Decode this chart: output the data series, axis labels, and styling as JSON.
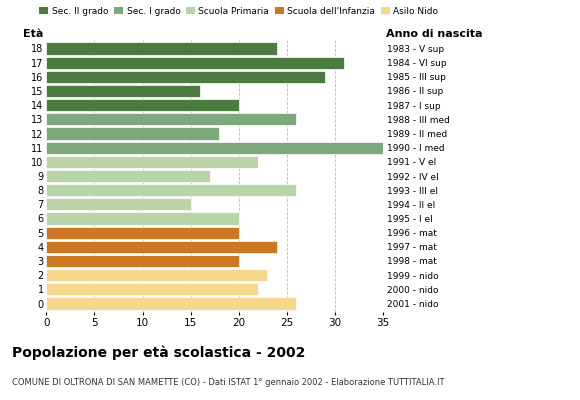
{
  "ages": [
    18,
    17,
    16,
    15,
    14,
    13,
    12,
    11,
    10,
    9,
    8,
    7,
    6,
    5,
    4,
    3,
    2,
    1,
    0
  ],
  "values": [
    24,
    31,
    29,
    16,
    20,
    26,
    18,
    35,
    22,
    17,
    26,
    15,
    20,
    20,
    24,
    20,
    23,
    22,
    26
  ],
  "right_labels": [
    "1983 - V sup",
    "1984 - VI sup",
    "1985 - III sup",
    "1986 - II sup",
    "1987 - I sup",
    "1988 - III med",
    "1989 - II med",
    "1990 - I med",
    "1991 - V el",
    "1992 - IV el",
    "1993 - III el",
    "1994 - II el",
    "1995 - I el",
    "1996 - mat",
    "1997 - mat",
    "1998 - mat",
    "1999 - nido",
    "2000 - nido",
    "2001 - nido"
  ],
  "colors": [
    "#4a7c3f",
    "#4a7c3f",
    "#4a7c3f",
    "#4a7c3f",
    "#4a7c3f",
    "#7da87b",
    "#7da87b",
    "#7da87b",
    "#b8d4a8",
    "#b8d4a8",
    "#b8d4a8",
    "#b8d4a8",
    "#b8d4a8",
    "#cc7722",
    "#cc7722",
    "#cc7722",
    "#f5d78e",
    "#f5d78e",
    "#f5d78e"
  ],
  "legend_labels": [
    "Sec. II grado",
    "Sec. I grado",
    "Scuola Primaria",
    "Scuola dell'Infanzia",
    "Asilo Nido"
  ],
  "legend_colors": [
    "#4a7c3f",
    "#7da87b",
    "#b8d4a8",
    "#cc7722",
    "#f5d78e"
  ],
  "title": "Popolazione per età scolastica - 2002",
  "subtitle": "COMUNE DI OLTRONA DI SAN MAMETTE (CO) - Dati ISTAT 1° gennaio 2002 - Elaborazione TUTTITALIA.IT",
  "xlabel_eta": "Età",
  "xlabel_anno": "Anno di nascita",
  "xlim": [
    0,
    35
  ],
  "xticks": [
    0,
    5,
    10,
    15,
    20,
    25,
    30,
    35
  ],
  "bg_color": "#ffffff",
  "grid_color": "#bbbbbb"
}
